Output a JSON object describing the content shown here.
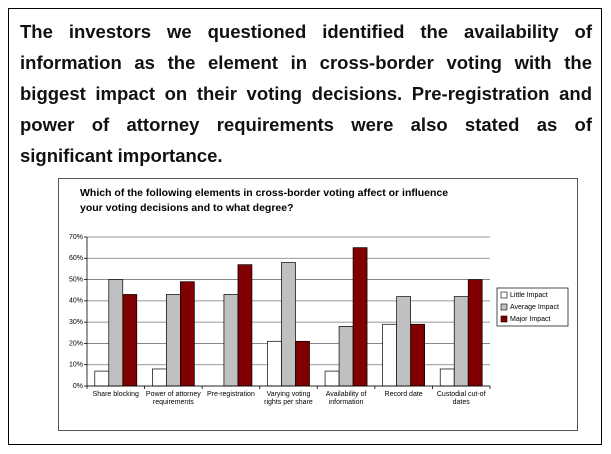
{
  "text": "The investors we questioned identified the availability of information as the element in cross-border voting with the biggest impact on their voting decisions. Pre-registration and power of attorney requirements were also stated as of significant importance.",
  "chart_data": {
    "type": "bar",
    "title": "Which of the following elements in cross-border voting affect or influence your voting decisions and to what degree?",
    "categories": [
      "Share blocking",
      "Power of attorney requirements",
      "Pre-registration",
      "Varying voting rights per share",
      "Availability of information",
      "Record date",
      "Custodial cut-of dates"
    ],
    "series": [
      {
        "name": "Little Impact",
        "color": "#ffffff",
        "values": [
          7,
          8,
          0,
          21,
          7,
          29,
          8
        ]
      },
      {
        "name": "Average Impact",
        "color": "#c0c0c0",
        "values": [
          50,
          43,
          43,
          58,
          28,
          42,
          42
        ]
      },
      {
        "name": "Major Impact",
        "color": "#800000",
        "values": [
          43,
          49,
          57,
          21,
          65,
          29,
          50
        ]
      }
    ],
    "ylim": [
      0,
      70
    ],
    "yticks": [
      {
        "value": 0,
        "label": "0%"
      },
      {
        "value": 10,
        "label": "10%"
      },
      {
        "value": 20,
        "label": "20%"
      },
      {
        "value": 30,
        "label": "30%"
      },
      {
        "value": 40,
        "label": "40%"
      },
      {
        "value": 50,
        "label": "50%"
      },
      {
        "value": 60,
        "label": "60%"
      },
      {
        "value": 70,
        "label": "70%"
      }
    ],
    "grid": true,
    "legend": "right"
  }
}
